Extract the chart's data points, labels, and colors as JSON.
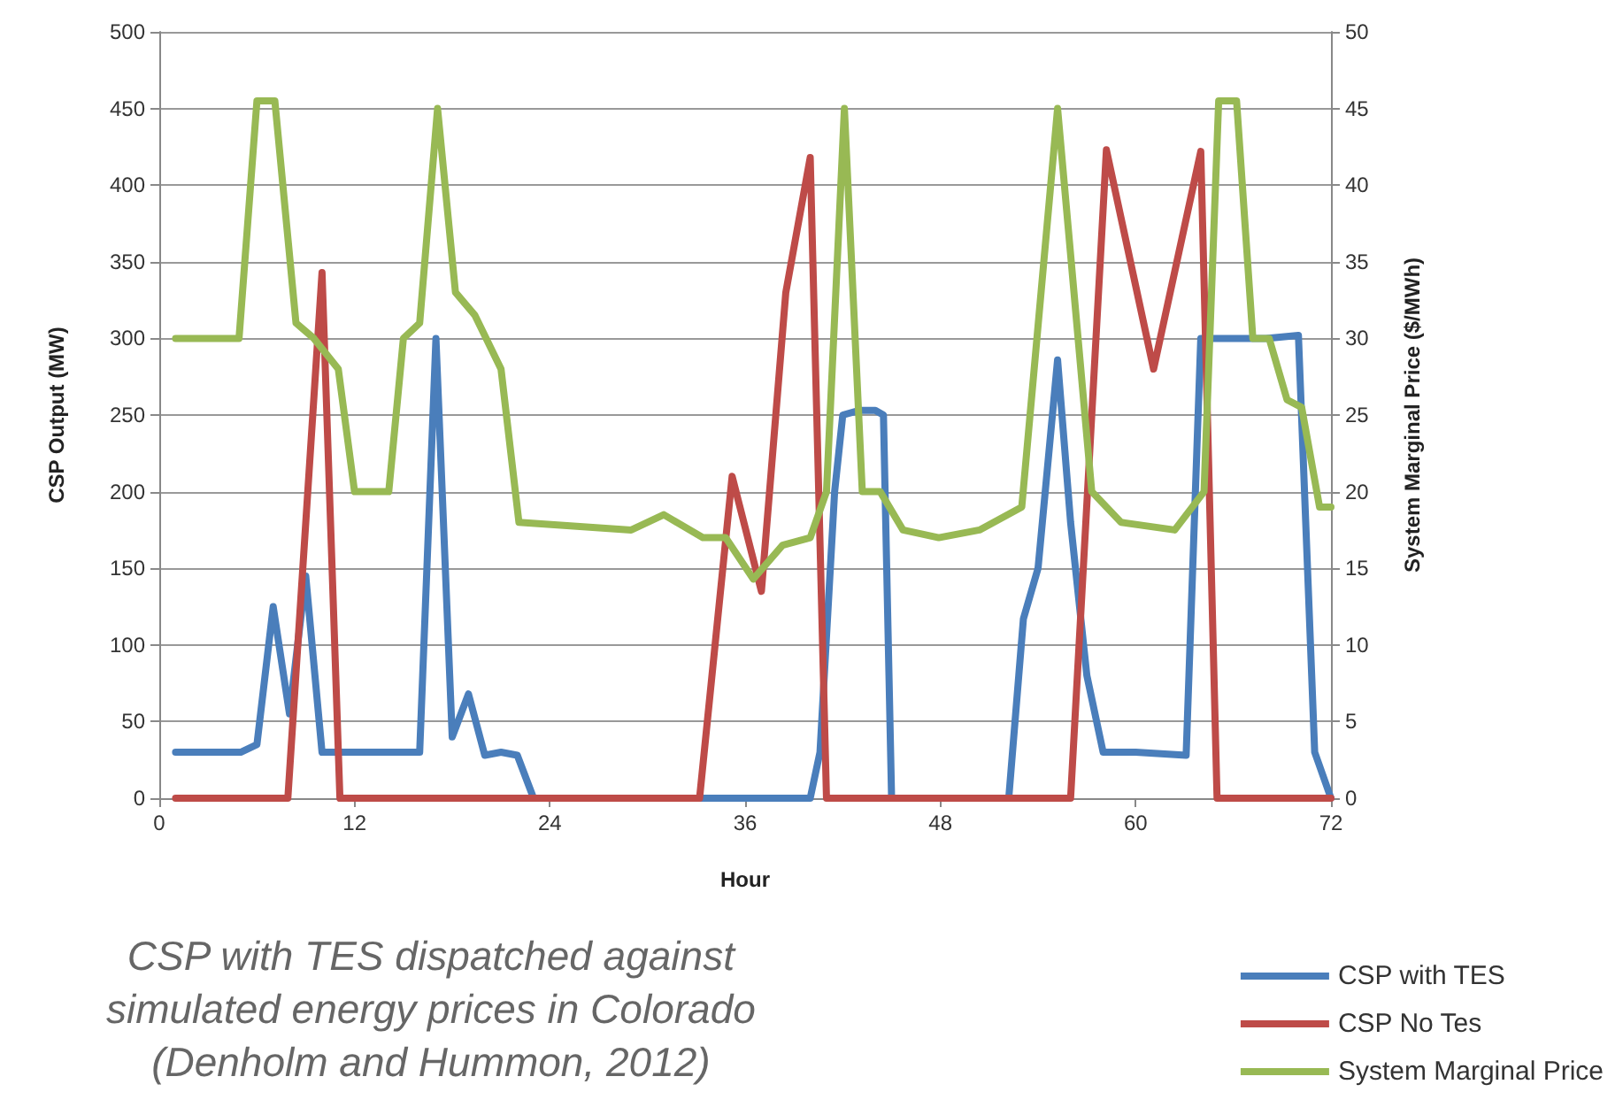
{
  "chart_data": {
    "type": "line",
    "xlabel": "Hour",
    "ylabel": "CSP Output (MW)",
    "y2label": "System Marginal Price ($/MWh)",
    "annotations": [
      "CSP with TES dispatched against\nsimulated energy prices in Colorado\n(Denholm and Hummon, 2012)"
    ],
    "xlim": [
      0,
      72
    ],
    "xticks": [
      0,
      12,
      24,
      36,
      48,
      60,
      72
    ],
    "ylim": [
      0,
      500
    ],
    "yticks": [
      0,
      50,
      100,
      150,
      200,
      250,
      300,
      350,
      400,
      450,
      500
    ],
    "y2lim": [
      0,
      50
    ],
    "y2ticks": [
      0,
      5,
      10,
      15,
      20,
      25,
      30,
      35,
      40,
      45,
      50
    ],
    "grid": "y",
    "legend": "bottom right",
    "marker": "none",
    "line_style": "solid",
    "series": [
      {
        "name": "CSP with TES",
        "color": "#4a7ebb",
        "x": [
          1,
          2,
          3,
          4,
          5,
          6,
          7,
          8,
          9,
          10,
          11,
          12,
          13,
          14,
          15,
          16,
          17,
          18,
          19,
          20,
          21,
          22,
          23,
          30,
          40,
          40.6,
          41.5,
          42,
          43,
          44,
          44.5,
          45,
          52.2,
          53.1,
          54,
          55.2,
          56,
          57,
          58,
          60,
          63.1,
          64,
          66,
          68,
          70,
          71,
          72
        ],
        "values": [
          30,
          30,
          30,
          30,
          30,
          35,
          125,
          55,
          145,
          30,
          30,
          30,
          30,
          30,
          30,
          30,
          300,
          40,
          68,
          28,
          30,
          28,
          0,
          0,
          0,
          30,
          200,
          250,
          253,
          253,
          250,
          0,
          0,
          117,
          150,
          286,
          180,
          80,
          30,
          30,
          28,
          300,
          300,
          300,
          302,
          30,
          0
        ]
      },
      {
        "name": "CSP No Tes",
        "color": "#be4b48",
        "x": [
          1,
          7.9,
          10,
          11.1,
          20,
          33.2,
          35.2,
          37,
          38.5,
          40,
          41,
          50,
          56,
          58.2,
          61.1,
          64,
          65,
          72
        ],
        "values": [
          0,
          0,
          343,
          0,
          0,
          0,
          210,
          135,
          330,
          418,
          0,
          0,
          0,
          423,
          280,
          422,
          0,
          0
        ]
      },
      {
        "name": "System Marginal Price",
        "color": "#98b954",
        "axis": "y2",
        "x": [
          1,
          3,
          4.9,
          6,
          7.1,
          8.4,
          9.5,
          11,
          12,
          14.1,
          15,
          16,
          17.1,
          18.2,
          19.4,
          21,
          22.1,
          29,
          31,
          33.4,
          34.8,
          36.5,
          38.3,
          40,
          41,
          42.1,
          43.2,
          44.3,
          45.7,
          47.9,
          50.4,
          53,
          55.2,
          57.3,
          59.1,
          62.4,
          64.2,
          65.1,
          66.2,
          67.2,
          68.2,
          69.3,
          70.2,
          71.3,
          72
        ],
        "values": [
          30,
          30,
          30,
          45.5,
          45.5,
          31,
          30,
          28,
          20,
          20,
          30,
          31,
          45,
          33,
          31.5,
          28,
          18,
          17.5,
          18.5,
          17,
          17,
          14.3,
          16.5,
          17,
          20,
          45,
          20,
          20,
          17.5,
          17,
          17.5,
          19,
          45,
          20,
          18,
          17.5,
          20,
          45.5,
          45.5,
          30,
          30,
          26,
          25.5,
          19,
          19
        ]
      }
    ]
  }
}
